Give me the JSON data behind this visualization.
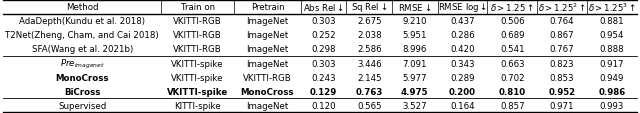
{
  "columns": [
    "Method",
    "Train on",
    "Pretrain",
    "Abs Rel ↓",
    "Sq Rel ↓",
    "RMSE↓",
    "RMSE log↓",
    "δ > 1.25↑",
    "δ > 1.25$^2$↑",
    "δ > 1.25$^3$↑"
  ],
  "rows": [
    [
      "AdaDepth(Kundu et al. 2018)",
      "VKITTI-RGB",
      "ImageNet",
      "0.303",
      "2.675",
      "9.210",
      "0.437",
      "0.506",
      "0.764",
      "0.881"
    ],
    [
      "T2Net(Zheng, Cham, and Cai 2018)",
      "VKITTI-RGB",
      "ImageNet",
      "0.252",
      "2.038",
      "5.951",
      "0.286",
      "0.689",
      "0.867",
      "0.954"
    ],
    [
      "SFA(Wang et al. 2021b)",
      "VKITTI-RGB",
      "ImageNet",
      "0.298",
      "2.586",
      "8.996",
      "0.420",
      "0.541",
      "0.767",
      "0.888"
    ],
    [
      "$\\mathit{Pre}_{\\mathit{imagenet}}$",
      "VKITTI-spike",
      "ImageNet",
      "0.303",
      "3.446",
      "7.091",
      "0.343",
      "0.663",
      "0.823",
      "0.917"
    ],
    [
      "MonoCross",
      "VKITTI-spike",
      "VKITTI-RGB",
      "0.243",
      "2.145",
      "5.977",
      "0.289",
      "0.702",
      "0.853",
      "0.949"
    ],
    [
      "BiCross",
      "VKITTI-spike",
      "MonoCross",
      "0.129",
      "0.763",
      "4.975",
      "0.200",
      "0.810",
      "0.952",
      "0.986"
    ],
    [
      "Supervised",
      "KITTI-spike",
      "ImageNet",
      "0.120",
      "0.565",
      "3.527",
      "0.164",
      "0.857",
      "0.971",
      "0.993"
    ]
  ],
  "bold_rows": [
    5
  ],
  "bold_method_rows": [
    4,
    5
  ],
  "italic_rows": [
    3
  ],
  "section_dividers_after": [
    2,
    5
  ],
  "col_weights": [
    2.6,
    1.2,
    1.1,
    0.75,
    0.75,
    0.75,
    0.82,
    0.82,
    0.82,
    0.82
  ],
  "font_size": 6.2,
  "fig_width": 6.4,
  "fig_height": 1.14,
  "dpi": 100
}
